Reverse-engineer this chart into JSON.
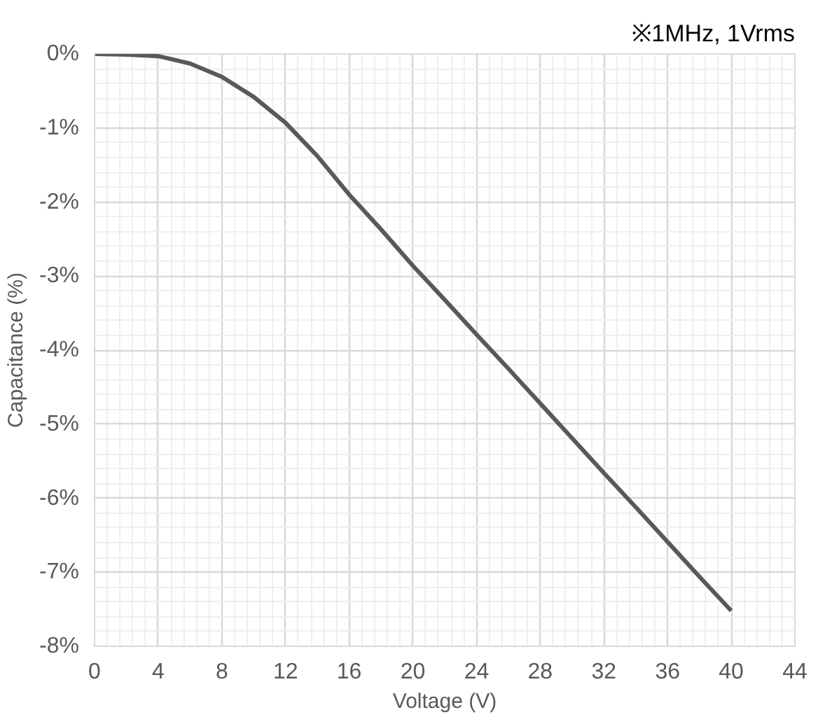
{
  "chart_data": {
    "type": "line",
    "annotations": [
      "※1MHz, 1Vrms"
    ],
    "xlabel": "Voltage (V)",
    "ylabel": "Capacitance (%)",
    "x": [
      0,
      2,
      4,
      6,
      8,
      10,
      12,
      14,
      16,
      18,
      20,
      22,
      24,
      26,
      28,
      30,
      32,
      34,
      36,
      38,
      40
    ],
    "series": [
      {
        "color": "#595959",
        "values": [
          0,
          -0.01,
          -0.03,
          -0.13,
          -0.31,
          -0.58,
          -0.93,
          -1.38,
          -1.9,
          -2.37,
          -2.86,
          -3.32,
          -3.79,
          -4.25,
          -4.72,
          -5.19,
          -5.66,
          -6.12,
          -6.59,
          -7.06,
          -7.52
        ]
      }
    ],
    "xlim": [
      0,
      44
    ],
    "xticks": [
      0,
      4,
      8,
      12,
      16,
      20,
      24,
      28,
      32,
      36,
      40,
      44
    ],
    "ylim": [
      -8,
      0
    ],
    "yticks": [
      {
        "value": 0,
        "label": "0%"
      },
      {
        "value": -1,
        "label": "-1%"
      },
      {
        "value": -2,
        "label": "-2%"
      },
      {
        "value": -3,
        "label": "-3%"
      },
      {
        "value": -4,
        "label": "-4%"
      },
      {
        "value": -5,
        "label": "-5%"
      },
      {
        "value": -6,
        "label": "-6%"
      },
      {
        "value": -7,
        "label": "-7%"
      },
      {
        "value": -8,
        "label": "-8%"
      }
    ],
    "grid": true,
    "marker": "none",
    "line_style": "solid"
  }
}
